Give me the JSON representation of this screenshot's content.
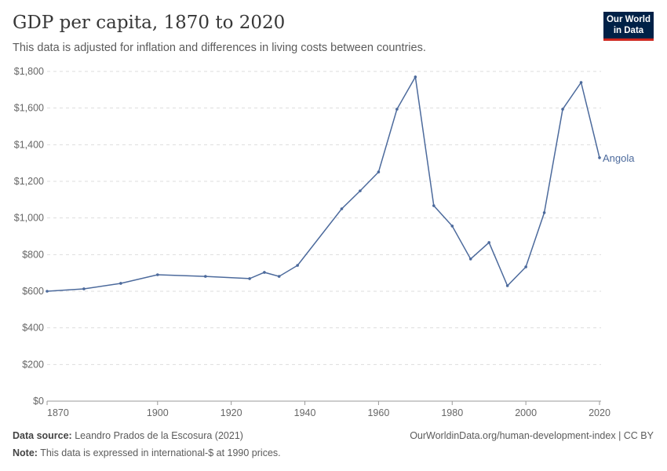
{
  "header": {
    "title": "GDP per capita, 1870 to 2020",
    "subtitle": "This data is adjusted for inflation and differences in living costs between countries.",
    "logo_line1": "Our World",
    "logo_line2": "in Data"
  },
  "footer": {
    "source_label": "Data source:",
    "source": "Leandro Prados de la Escosura (2021)",
    "note_label": "Note:",
    "note": "This data is expressed in international-$ at 1990 prices.",
    "url": "OurWorldinData.org/human-development-index | CC BY"
  },
  "chart_data": {
    "type": "line",
    "title": "GDP per capita, 1870 to 2020",
    "xlim": [
      1870,
      2020
    ],
    "ylim": [
      0,
      1800
    ],
    "x_ticks": [
      1870,
      1900,
      1920,
      1940,
      1960,
      1980,
      2000,
      2020
    ],
    "y_ticks": [
      0,
      200,
      400,
      600,
      800,
      1000,
      1200,
      1400,
      1600,
      1800
    ],
    "y_tick_labels": [
      "$0",
      "$200",
      "$400",
      "$600",
      "$800",
      "$1,000",
      "$1,200",
      "$1,400",
      "$1,600",
      "$1,800"
    ],
    "grid": "horizontal dashed",
    "color": "#4c6a9c",
    "series": [
      {
        "name": "Angola",
        "x": [
          1870,
          1880,
          1890,
          1900,
          1913,
          1925,
          1929,
          1933,
          1938,
          1950,
          1955,
          1960,
          1965,
          1970,
          1975,
          1980,
          1985,
          1990,
          1995,
          2000,
          2005,
          2010,
          2015,
          2020
        ],
        "values": [
          600,
          613,
          643,
          690,
          681,
          669,
          703,
          681,
          741,
          1050,
          1148,
          1251,
          1594,
          1770,
          1067,
          956,
          776,
          866,
          630,
          733,
          1029,
          1594,
          1740,
          1329
        ]
      }
    ]
  }
}
